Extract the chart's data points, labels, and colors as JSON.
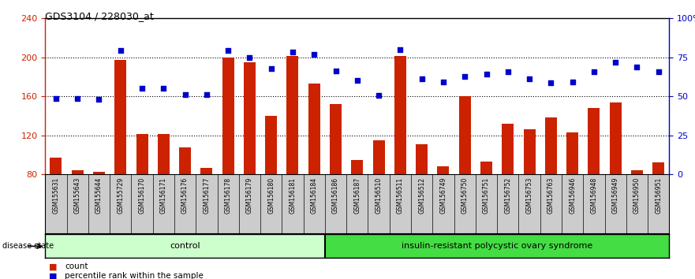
{
  "title": "GDS3104 / 228030_at",
  "samples": [
    "GSM155631",
    "GSM155643",
    "GSM155644",
    "GSM155729",
    "GSM156170",
    "GSM156171",
    "GSM156176",
    "GSM156177",
    "GSM156178",
    "GSM156179",
    "GSM156180",
    "GSM156181",
    "GSM156184",
    "GSM156186",
    "GSM156187",
    "GSM156510",
    "GSM156511",
    "GSM156512",
    "GSM156749",
    "GSM156750",
    "GSM156751",
    "GSM156752",
    "GSM156753",
    "GSM156763",
    "GSM156946",
    "GSM156948",
    "GSM156949",
    "GSM156950",
    "GSM156951"
  ],
  "bar_values": [
    97,
    84,
    83,
    197,
    121,
    121,
    108,
    87,
    200,
    195,
    140,
    201,
    173,
    152,
    95,
    115,
    201,
    111,
    88,
    160,
    93,
    132,
    126,
    138,
    123,
    148,
    154,
    84,
    92
  ],
  "percentile_values": [
    158,
    158,
    157,
    207,
    168,
    168,
    162,
    162,
    207,
    200,
    188,
    205,
    203,
    186,
    176,
    161,
    208,
    178,
    175,
    180,
    183,
    185,
    178,
    174,
    175,
    185,
    195,
    190,
    185
  ],
  "control_count": 13,
  "disease_count": 16,
  "bar_color": "#cc2200",
  "dot_color": "#0000cc",
  "ymin": 80,
  "ymax": 240,
  "y_ticks": [
    80,
    120,
    160,
    200,
    240
  ],
  "right_ticks": [
    0,
    25,
    50,
    75,
    100
  ],
  "right_tick_labels": [
    "0",
    "25",
    "50",
    "75",
    "100%"
  ],
  "control_label": "control",
  "disease_label": "insulin-resistant polycystic ovary syndrome",
  "disease_state_label": "disease state",
  "legend_bar_label": "count",
  "legend_dot_label": "percentile rank within the sample",
  "label_area_color": "#cccccc",
  "control_bg": "#ccffcc",
  "disease_bg": "#44dd44"
}
